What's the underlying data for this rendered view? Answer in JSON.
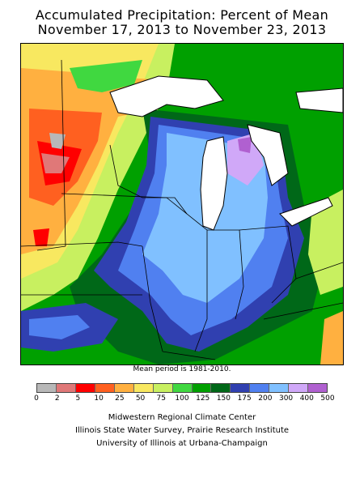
{
  "title": {
    "line1": "Accumulated Precipitation: Percent of Mean",
    "line2": "November 17, 2013 to November 23, 2013"
  },
  "mean_period": "Mean period is 1981-2010.",
  "legend": {
    "labels": [
      "0",
      "2",
      "5",
      "10",
      "25",
      "50",
      "75",
      "100",
      "125",
      "150",
      "175",
      "200",
      "300",
      "400",
      "500"
    ],
    "colors": [
      "#b8b8b8",
      "#e07878",
      "#ff0000",
      "#ff6020",
      "#ffb040",
      "#f8e860",
      "#c8f060",
      "#40d840",
      "#00a000",
      "#006818",
      "#3040b0",
      "#5080f0",
      "#80c0ff",
      "#d0a8f8",
      "#b060d0"
    ]
  },
  "credits": {
    "line1": "Midwestern Regional Climate Center",
    "line2": "Illinois State Water Survey, Prairie Research Institute",
    "line3": "University of Illinois at Urbana-Champaign"
  },
  "colors": {
    "lake": "#ffffff",
    "outline": "#000000"
  }
}
